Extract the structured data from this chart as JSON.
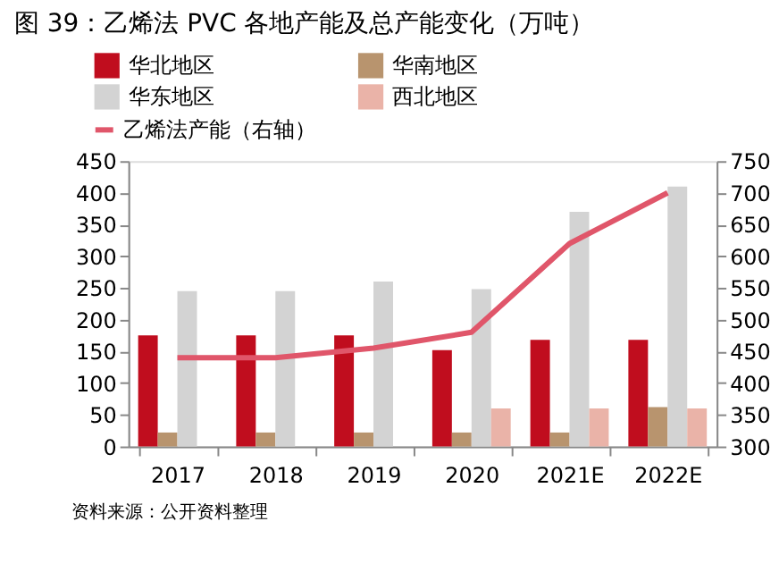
{
  "chart_data": {
    "type": "bar",
    "title": "图 39：乙烯法 PVC 各地产能及总产能变化（万吨）",
    "categories": [
      "2017",
      "2018",
      "2019",
      "2020",
      "2021E",
      "2022E"
    ],
    "series": [
      {
        "name": "华北地区",
        "color": "#c00d1e",
        "values": [
          175,
          175,
          175,
          152,
          168,
          168
        ]
      },
      {
        "name": "华南地区",
        "color": "#b8946e",
        "values": [
          22,
          22,
          22,
          22,
          22,
          62
        ]
      },
      {
        "name": "华东地区",
        "color": "#d3d3d3",
        "values": [
          245,
          245,
          260,
          248,
          370,
          410
        ]
      },
      {
        "name": "西北地区",
        "color": "#eab3a8",
        "values": [
          null,
          null,
          null,
          60,
          60,
          60
        ]
      },
      {
        "name": "乙烯法产能（右轴）",
        "type": "line",
        "axis": "y2",
        "color": "#e0566a",
        "values": [
          440,
          440,
          455,
          480,
          620,
          700
        ]
      }
    ],
    "ylim": [
      0,
      450
    ],
    "yticks": [
      0,
      50,
      100,
      150,
      200,
      250,
      300,
      350,
      400,
      450
    ],
    "y2lim": [
      300,
      750
    ],
    "y2ticks": [
      300,
      350,
      400,
      450,
      500,
      550,
      600,
      650,
      700,
      750
    ],
    "grid": false,
    "legend": "top",
    "line_style": "solid",
    "marker": "none",
    "annotations": [
      "资料来源：公开资料整理"
    ]
  }
}
